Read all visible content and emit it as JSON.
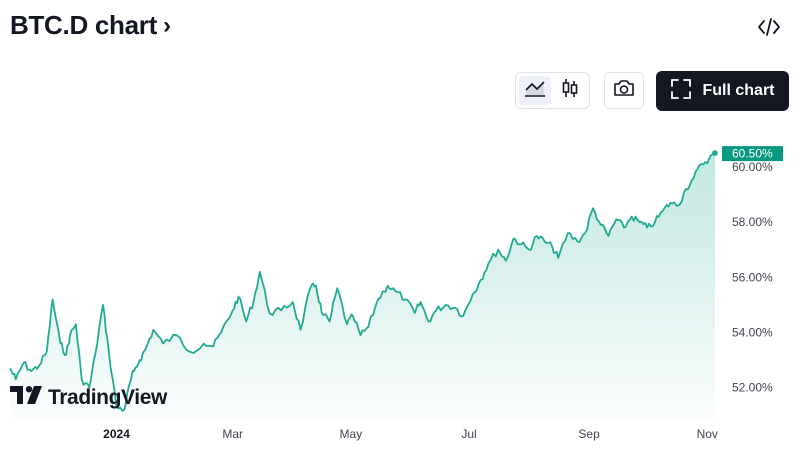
{
  "header": {
    "title": "BTC.D chart",
    "chevron": "›"
  },
  "toolbar": {
    "embed_icon": "code-icon",
    "chart_types": [
      {
        "icon": "area-chart-icon",
        "active": true
      },
      {
        "icon": "candles-chart-icon",
        "active": false
      }
    ],
    "snapshot_icon": "camera-icon",
    "full_chart_label": "Full chart",
    "full_chart_icon": "fullscreen-icon"
  },
  "watermark": {
    "text": "TradingView",
    "icon": "tradingview-logo"
  },
  "colors": {
    "line": "#22ab94",
    "fill_top": "#22ab94",
    "badge": "#089981",
    "text": "#131722",
    "axis_text": "#434651"
  },
  "last_value_label": "60.50%",
  "chart_data": {
    "type": "area",
    "title": "",
    "xlabel": "",
    "ylabel": "",
    "ylim": [
      50.9,
      61.7
    ],
    "x_ticks": [
      {
        "date": "2024-01-01",
        "label": "2024",
        "bold": true
      },
      {
        "date": "2024-03-01",
        "label": "Mar"
      },
      {
        "date": "2024-05-01",
        "label": "May"
      },
      {
        "date": "2024-07-01",
        "label": "Jul"
      },
      {
        "date": "2024-09-01",
        "label": "Sep"
      },
      {
        "date": "2024-11-01",
        "label": "Nov"
      }
    ],
    "y_ticks": [
      {
        "value": 52,
        "label": "52.00%"
      },
      {
        "value": 54,
        "label": "54.00%"
      },
      {
        "value": 56,
        "label": "56.00%"
      },
      {
        "value": 58,
        "label": "58.00%"
      },
      {
        "value": 60,
        "label": "60.00%"
      }
    ],
    "last_value": 60.5,
    "grid": false,
    "series": [
      {
        "x": [
          "2023-11-07",
          "2023-11-10",
          "2023-11-14",
          "2023-11-18",
          "2023-11-22",
          "2023-11-26",
          "2023-11-29",
          "2023-12-03",
          "2023-12-06",
          "2023-12-08",
          "2023-12-11",
          "2023-12-14",
          "2023-12-18",
          "2023-12-21",
          "2023-12-25",
          "2023-12-28",
          "2024-01-01",
          "2024-01-05",
          "2024-01-08",
          "2024-01-10",
          "2024-01-13",
          "2024-01-16",
          "2024-01-20",
          "2024-01-25",
          "2024-02-01",
          "2024-02-08",
          "2024-02-15",
          "2024-02-20",
          "2024-02-24",
          "2024-03-01",
          "2024-03-04",
          "2024-03-08",
          "2024-03-12",
          "2024-03-15",
          "2024-03-20",
          "2024-03-26",
          "2024-04-01",
          "2024-04-05",
          "2024-04-10",
          "2024-04-13",
          "2024-04-16",
          "2024-04-20",
          "2024-04-24",
          "2024-04-29",
          "2024-05-02",
          "2024-05-06",
          "2024-05-10",
          "2024-05-15",
          "2024-05-20",
          "2024-05-24",
          "2024-05-29",
          "2024-06-03",
          "2024-06-06",
          "2024-06-10",
          "2024-06-14",
          "2024-06-19",
          "2024-06-24",
          "2024-06-28",
          "2024-07-03",
          "2024-07-07",
          "2024-07-11",
          "2024-07-16",
          "2024-07-20",
          "2024-07-24",
          "2024-07-28",
          "2024-08-01",
          "2024-08-05",
          "2024-08-09",
          "2024-08-13",
          "2024-08-16",
          "2024-08-21",
          "2024-08-26",
          "2024-08-30",
          "2024-09-03",
          "2024-09-07",
          "2024-09-11",
          "2024-09-15",
          "2024-09-19",
          "2024-09-23",
          "2024-09-27",
          "2024-10-01",
          "2024-10-05",
          "2024-10-09",
          "2024-10-13",
          "2024-10-17",
          "2024-10-21",
          "2024-10-25",
          "2024-10-29",
          "2024-11-02",
          "2024-11-05"
        ],
        "y": [
          52.7,
          52.3,
          52.9,
          52.6,
          52.8,
          53.3,
          55.2,
          53.6,
          53.2,
          53.9,
          54.3,
          52.3,
          52.0,
          53.2,
          55.0,
          53.3,
          51.3,
          51.2,
          52.2,
          52.6,
          53.0,
          53.4,
          54.1,
          53.6,
          53.9,
          53.3,
          53.6,
          53.5,
          54.0,
          54.8,
          55.3,
          54.4,
          55.2,
          56.2,
          54.7,
          54.8,
          55.1,
          54.1,
          55.6,
          55.7,
          54.7,
          54.4,
          55.6,
          54.3,
          54.6,
          53.9,
          54.2,
          55.2,
          55.7,
          55.5,
          55.2,
          54.7,
          55.1,
          54.4,
          54.8,
          55.0,
          54.9,
          54.6,
          55.4,
          55.9,
          56.5,
          57.0,
          56.6,
          57.4,
          57.2,
          57.0,
          57.5,
          57.3,
          57.1,
          56.7,
          57.6,
          57.3,
          57.6,
          58.5,
          57.9,
          57.5,
          58.1,
          57.8,
          58.2,
          58.0,
          57.8,
          58.0,
          58.4,
          58.7,
          58.6,
          59.2,
          59.6,
          60.1,
          60.3,
          60.5
        ]
      }
    ]
  }
}
